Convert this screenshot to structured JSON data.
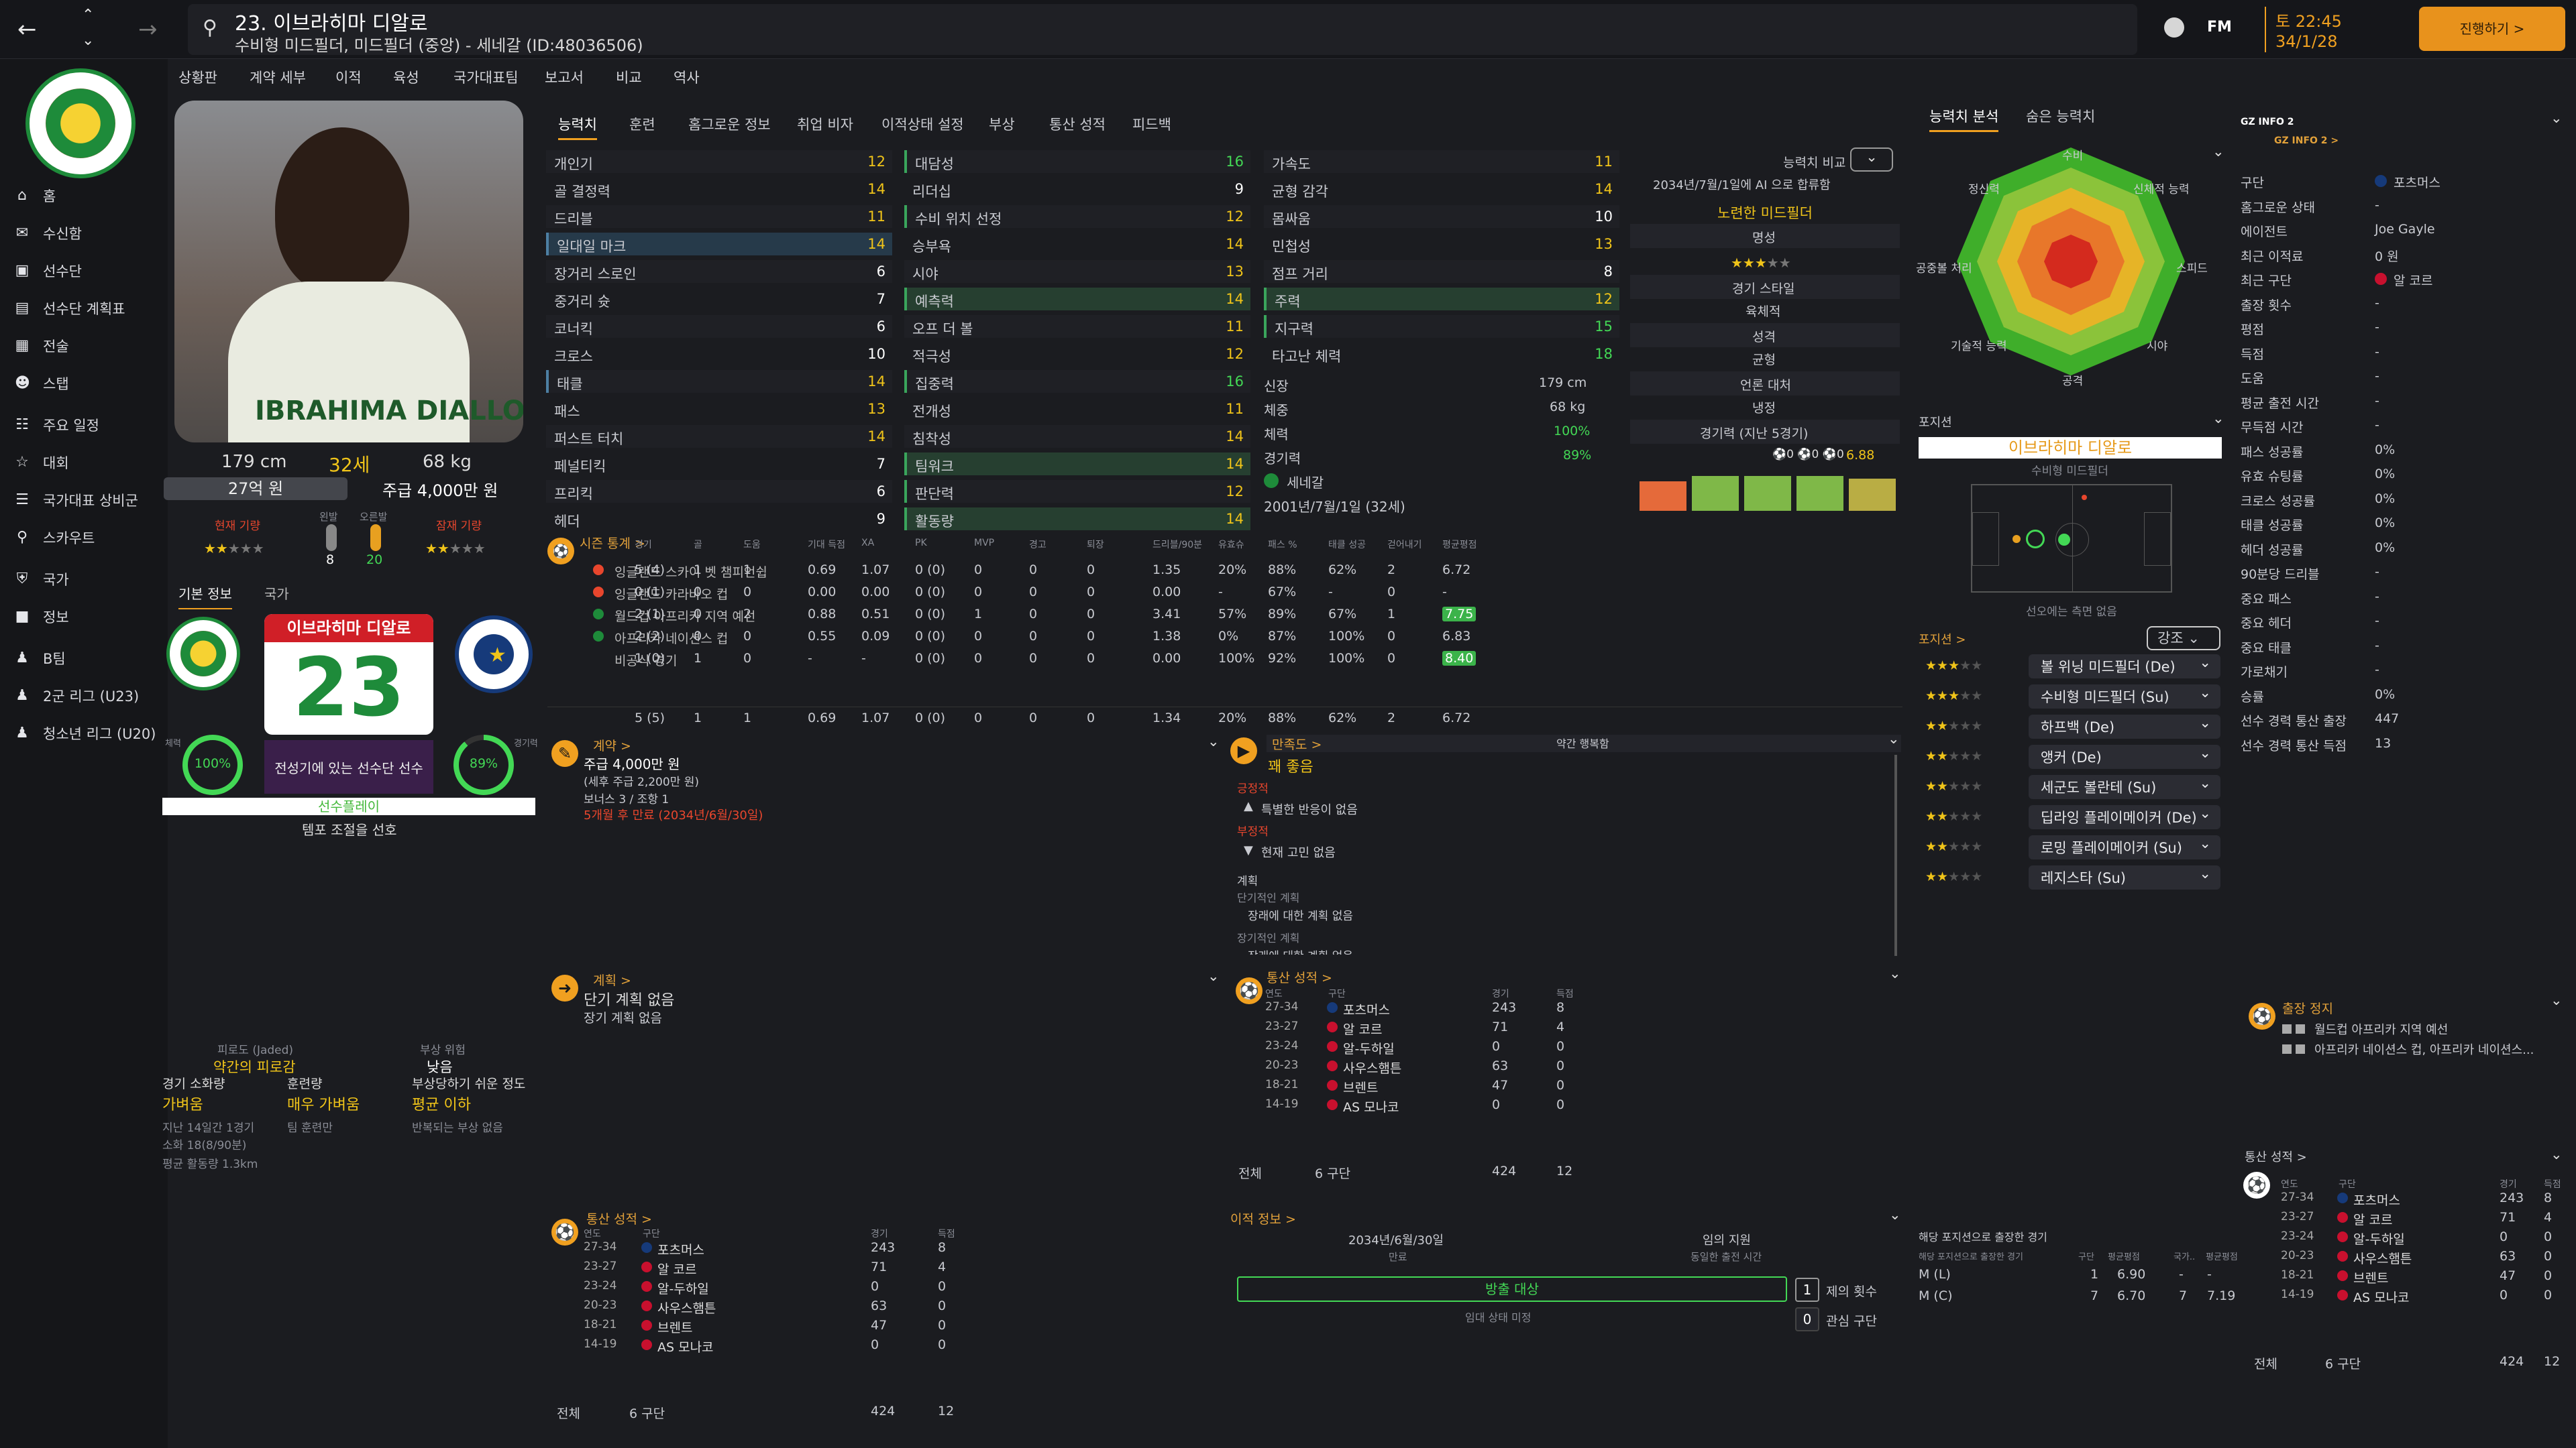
{
  "topbar": {
    "player_line1": "23. 이브라히마 디알로",
    "player_line2": "수비형 미드필더, 미드필더 (중앙) - 세네갈 (ID:48036506)",
    "clock_time": "토 22:45",
    "clock_date": "34/1/28",
    "continue_label": "진행하기 >",
    "fm_label": "FM"
  },
  "sidebar": {
    "items": [
      "홈",
      "수신함",
      "선수단",
      "선수단 계획표",
      "전술",
      "스탭",
      "주요 일정",
      "대회",
      "국가대표 상비군",
      "스카우트",
      "국가",
      "정보",
      "B팀",
      "2군 리그 (U23)",
      "청소년 리그 (U20)"
    ]
  },
  "subnav": [
    "상황판",
    "계약 세부",
    "이적",
    "육성",
    "국가대표팀",
    "보고서",
    "비교",
    "역사"
  ],
  "profile": {
    "shirt_name": "IBRAHIMA DIALLO",
    "height": "179 cm",
    "age": "32세",
    "weight": "68 kg",
    "value": "27억 원",
    "wage": "주급 4,000만 원",
    "cur_ability": "현재 기량",
    "pot_ability": "잠재 기량",
    "left_foot": "왼발",
    "right_foot": "오른발",
    "left_val": "8",
    "right_val": "20",
    "tab_basic": "기본 정보",
    "tab_nation": "국가",
    "card_name": "이브라히마 디알로",
    "card_number": "23",
    "fitness_label": "체력",
    "fitness_val": "100%",
    "sharp_label": "경기력",
    "sharp_val": "89%",
    "squad_status": "전성기에 있는 선수단 선수",
    "playing_time": "선수플레이",
    "tempo_pref": "템포 조절을 선호",
    "fatigue_title": "피로도 (Jaded)",
    "fatigue_val": "약간의 피로감",
    "injury_title": "부상 위험",
    "injury_val": "낮음",
    "match_load_t": "경기 소화량",
    "match_load_v": "가벼움",
    "train_t": "훈련량",
    "train_v": "매우 가벼움",
    "injury_prone_t": "부상당하기 쉬운 정도",
    "injury_prone_v": "평균 이하",
    "recent_games": "지난 14일간 1경기",
    "minutes": "소화 18(8/90분)",
    "distance": "평균 활동량 1.3km",
    "train_intensity": "팀 훈련만",
    "injury_note": "반복되는 부상 없음"
  },
  "tabs": [
    "능력치",
    "훈련",
    "홈그로운 정보",
    "취업 비자",
    "이적상태 설정",
    "부상",
    "통산 성적",
    "피드백"
  ],
  "attr_tech": [
    [
      "개인기",
      "12"
    ],
    [
      "골 결정력",
      "14"
    ],
    [
      "드리블",
      "11"
    ],
    [
      "일대일 마크",
      "14"
    ],
    [
      "장거리 스로인",
      "6"
    ],
    [
      "중거리 슛",
      "7"
    ],
    [
      "코너킥",
      "6"
    ],
    [
      "크로스",
      "10"
    ],
    [
      "태클",
      "14"
    ],
    [
      "패스",
      "13"
    ],
    [
      "퍼스트 터치",
      "14"
    ],
    [
      "페널티킥",
      "7"
    ],
    [
      "프리킥",
      "6"
    ],
    [
      "헤더",
      "9"
    ]
  ],
  "attr_ment": [
    [
      "대담성",
      "16"
    ],
    [
      "리더십",
      "9"
    ],
    [
      "수비 위치 선정",
      "12"
    ],
    [
      "승부욕",
      "14"
    ],
    [
      "시야",
      "13"
    ],
    [
      "예측력",
      "14"
    ],
    [
      "오프 더 볼",
      "11"
    ],
    [
      "적극성",
      "12"
    ],
    [
      "집중력",
      "16"
    ],
    [
      "전개성",
      "11"
    ],
    [
      "침착성",
      "14"
    ],
    [
      "팀워크",
      "14"
    ],
    [
      "판단력",
      "12"
    ],
    [
      "활동량",
      "14"
    ]
  ],
  "attr_phys": [
    [
      "가속도",
      "11"
    ],
    [
      "균형 감각",
      "14"
    ],
    [
      "몸싸움",
      "10"
    ],
    [
      "민첩성",
      "13"
    ],
    [
      "점프 거리",
      "8"
    ],
    [
      "주력",
      "12"
    ],
    [
      "지구력",
      "15"
    ],
    [
      "타고난 체력",
      "18"
    ]
  ],
  "phys_info": {
    "height_l": "신장",
    "height_v": "179 cm",
    "weight_l": "체중",
    "weight_v": "68 kg",
    "cond_l": "체력",
    "cond_v": "100%",
    "sharp_l": "경기력",
    "sharp_v": "89%",
    "nation": "세네갈",
    "dob": "2001년/7월/1일 (32세)"
  },
  "compare": {
    "label": "능력치 비교",
    "contract_note": "2034년/7월/1일에 AI 으로 합류함",
    "role": "노련한 미드필더",
    "fame_l": "명성",
    "style_l": "경기 스타일",
    "style_v": "육체적",
    "personality_l": "성격",
    "personality_v": "균형",
    "media_l": "언론 대처",
    "media_v": "냉정",
    "form_l": "경기력 (지난 5경기)",
    "form_v": "6.88"
  },
  "season": {
    "title": "시즌 통계 >",
    "headers": [
      "경기",
      "골",
      "도움",
      "기대 득점",
      "XA",
      "PK",
      "MVP",
      "경고",
      "퇴장",
      "드리블/90분",
      "유효슈",
      "패스 %",
      "태클 성공",
      "걷어내기",
      "평균평점"
    ],
    "rows": [
      [
        "잉글랜드 스카이 벳 챔피언쉽",
        "5 (4)",
        "1",
        "1",
        "0.69",
        "1.07",
        "0 (0)",
        "0",
        "0",
        "0",
        "1.35",
        "20%",
        "88%",
        "62%",
        "2",
        "6.72"
      ],
      [
        "잉글랜드 카라바오 컵",
        "0 (1)",
        "0",
        "0",
        "0.00",
        "0.00",
        "0 (0)",
        "0",
        "0",
        "0",
        "0.00",
        "-",
        "67%",
        "-",
        "0",
        "-"
      ],
      [
        "월드컵 아프리카 지역 예선",
        "2 (1)",
        "0",
        "2",
        "0.88",
        "0.51",
        "0 (0)",
        "1",
        "0",
        "0",
        "3.41",
        "57%",
        "89%",
        "67%",
        "1",
        "7.75"
      ],
      [
        "아프리카 네이션스 컵",
        "2 (2)",
        "0",
        "0",
        "0.55",
        "0.09",
        "0 (0)",
        "0",
        "0",
        "0",
        "1.38",
        "0%",
        "87%",
        "100%",
        "0",
        "6.83"
      ],
      [
        "비공식 경기",
        "1 (0)",
        "1",
        "0",
        "-",
        "-",
        "0 (0)",
        "0",
        "0",
        "0",
        "0.00",
        "100%",
        "92%",
        "100%",
        "0",
        "8.40"
      ]
    ],
    "total": [
      "5 (5)",
      "1",
      "1",
      "0.69",
      "1.07",
      "0 (0)",
      "0",
      "0",
      "0",
      "1.34",
      "20%",
      "88%",
      "62%",
      "2",
      "6.72"
    ]
  },
  "contract": {
    "title": "계약 >",
    "wage": "주급 4,000만 원",
    "wage_sub": "(세후 주급 2,200만 원)",
    "bonus": "보너스 3 / 조항 1",
    "expiry": "5개월 후 만료 (2034년/6월/30일)"
  },
  "happiness": {
    "title": "만족도 >",
    "value": "꽤 좋음",
    "rel": "약간 행복함",
    "pos_t": "긍정적",
    "pos_v": "특별한 반응이 없음",
    "neg_t": "부정적",
    "neg_v": "현재 고민 없음",
    "plan_t": "계획",
    "short_t": "단기적인 계획",
    "short_v": "장래에 대한 계획 없음",
    "long_t": "장기적인 계획",
    "long_v": "장래에 대한 계획 없음"
  },
  "plans": {
    "title": "계획 >",
    "short": "단기 계획 없음",
    "long": "장기 계획 없음"
  },
  "career": {
    "title": "통산 성적 >",
    "h_year": "연도",
    "h_club": "구단",
    "h_apps": "경기",
    "h_goals": "득점",
    "rows": [
      [
        "27-34",
        "포츠머스",
        "243",
        "8"
      ],
      [
        "23-27",
        "알 코르",
        "71",
        "4"
      ],
      [
        "23-24",
        "알-두하일",
        "0",
        "0"
      ],
      [
        "20-23",
        "사우스햄튼",
        "63",
        "0"
      ],
      [
        "18-21",
        "브렌트",
        "47",
        "0"
      ],
      [
        "14-19",
        "AS 모나코",
        "0",
        "0"
      ]
    ],
    "total_l": "전체",
    "total_clubs": "6 구단",
    "total_apps": "424",
    "total_goals": "12"
  },
  "transfer": {
    "title": "이적 정보 >",
    "date": "2034년/6월/30일",
    "date_l": "만료",
    "support": "임의 지원",
    "support_l": "동일한 출전 시간",
    "status": "방출 대상",
    "status_l": "임대 상태 미정",
    "interested": "1",
    "interested_l": "제의 횟수",
    "clubs": "0",
    "clubs_l": "관심 구단"
  },
  "ability_panel": {
    "tab1": "능력치 분석",
    "tab2": "숨은 능력치",
    "axes": [
      "수비",
      "신체적 능력",
      "스피드",
      "시야",
      "공격",
      "기술적 능력",
      "공중볼 처리",
      "정신력"
    ]
  },
  "position": {
    "title": "포지션",
    "name": "이브라히마 디알로",
    "role": "수비형 미드필더",
    "note": "선오에는 측면 없음",
    "pos_label": "포지션 >",
    "strength": "강조",
    "roles": [
      [
        "볼 위닝 미드필더 (De)"
      ],
      [
        "수비형 미드필더 (Su)"
      ],
      [
        "하프백 (De)"
      ],
      [
        "앵커 (De)"
      ],
      [
        "세군도 볼란테 (Su)"
      ],
      [
        "딥라잉 플레이메이커 (De)"
      ],
      [
        "로밍 플레이메이커 (Su)"
      ],
      [
        "레지스타 (Su)"
      ]
    ],
    "played_title": "해당 포지션으로 출장한 경기",
    "played_h": [
      "해당 포지션으로 출장한 경기",
      "구단",
      "평균평점",
      "국가..",
      "평균평점"
    ],
    "played": [
      [
        "M (L)",
        "1",
        "6.90",
        "-",
        "-"
      ],
      [
        "M (C)",
        "7",
        "6.70",
        "7",
        "7.19"
      ]
    ]
  },
  "gz": {
    "title": "GZ INFO 2",
    "sub": "GZ INFO 2 >",
    "rows": [
      [
        "구단",
        "포츠머스"
      ],
      [
        "홈그로운 상태",
        "-"
      ],
      [
        "에이전트",
        "Joe Gayle"
      ],
      [
        "최근 이적료",
        "0 원"
      ],
      [
        "최근 구단",
        "알 코르"
      ],
      [
        "출장 횟수",
        "-"
      ],
      [
        "평점",
        "-"
      ],
      [
        "득점",
        "-"
      ],
      [
        "도움",
        "-"
      ],
      [
        "평균 출전 시간",
        "-"
      ],
      [
        "무득점 시간",
        "-"
      ],
      [
        "패스 성공률",
        "0%"
      ],
      [
        "유효 슈팅률",
        "0%"
      ],
      [
        "크로스 성공률",
        "0%"
      ],
      [
        "태클 성공률",
        "0%"
      ],
      [
        "헤더 성공률",
        "0%"
      ],
      [
        "90분당 드리블",
        "-"
      ],
      [
        "중요 패스",
        "-"
      ],
      [
        "중요 헤더",
        "-"
      ],
      [
        "중요 태클",
        "-"
      ],
      [
        "가로채기",
        "-"
      ],
      [
        "승률",
        "0%"
      ],
      [
        "선수 경력 통산 출장",
        "447"
      ],
      [
        "선수 경력 통산 득점",
        "13"
      ]
    ],
    "ban_title": "출장 정지",
    "ban1": "월드컵 아프리카 지역 예선",
    "ban2": "아프리카 네이션스 컵, 아프리카 네이션스..."
  },
  "colors": {
    "accent": "#f0a020",
    "yellow": "#f0c419",
    "green": "#43d855",
    "red": "#e8462d"
  }
}
